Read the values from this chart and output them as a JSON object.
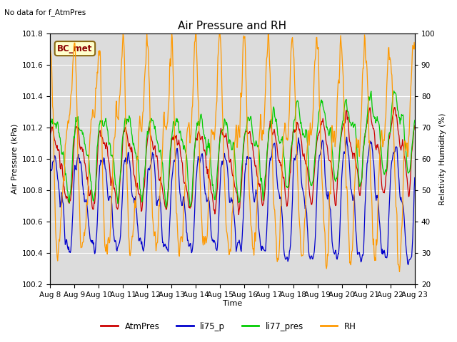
{
  "title": "Air Pressure and RH",
  "subtitle": "No data for f_AtmPres",
  "xlabel": "Time",
  "ylabel_left": "Air Pressure (kPa)",
  "ylabel_right": "Relativity Humidity (%)",
  "annotation": "BC_met",
  "ylim_left": [
    100.2,
    101.8
  ],
  "ylim_right": [
    20,
    100
  ],
  "yticks_left": [
    100.2,
    100.4,
    100.6,
    100.8,
    101.0,
    101.2,
    101.4,
    101.6,
    101.8
  ],
  "yticks_right": [
    20,
    30,
    40,
    50,
    60,
    70,
    80,
    90,
    100
  ],
  "colors": {
    "AtmPres": "#cc0000",
    "li75_p": "#0000cc",
    "li77_pres": "#00cc00",
    "RH": "#ff9900"
  },
  "legend_labels": [
    "AtmPres",
    "li75_p",
    "li77_pres",
    "RH"
  ],
  "plot_bg": "#dcdcdc",
  "grid_color": "#ffffff",
  "title_fontsize": 11,
  "label_fontsize": 8,
  "tick_fontsize": 7.5
}
